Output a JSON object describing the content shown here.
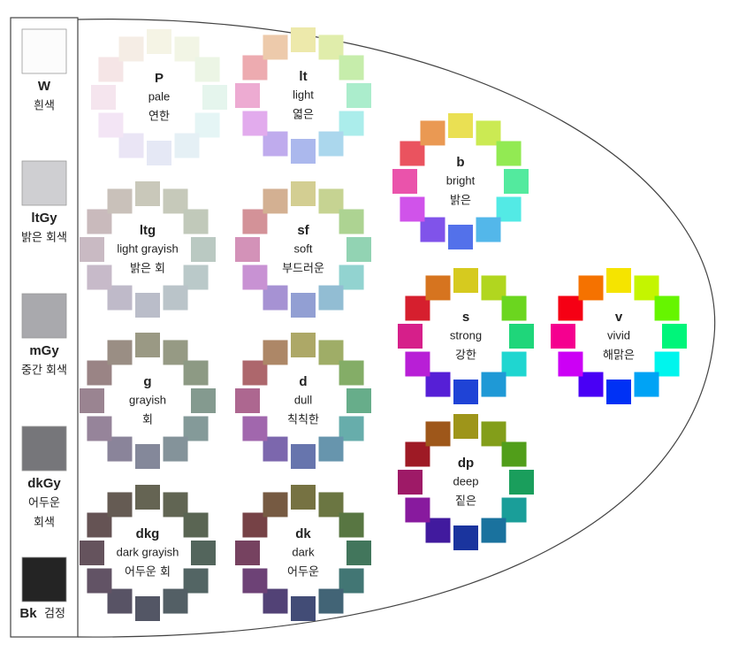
{
  "grays": [
    {
      "abbr": "W",
      "lines": [
        "흰색"
      ]
    },
    {
      "abbr": "ltGy",
      "lines": [
        "밝은 회색"
      ]
    },
    {
      "abbr": "mGy",
      "lines": [
        "중간 회색"
      ]
    },
    {
      "abbr": "dkGy",
      "lines": [
        "어두운",
        "회색"
      ]
    },
    {
      "abbr": "Bk",
      "lines": [
        "검정"
      ]
    }
  ],
  "tones": [
    {
      "abbr": "P",
      "en": "pale",
      "ko": "연한"
    },
    {
      "abbr": "lt",
      "en": "light",
      "ko": "엷은"
    },
    {
      "abbr": "b",
      "en": "bright",
      "ko": "밝은"
    },
    {
      "abbr": "ltg",
      "en": "light grayish",
      "ko": "밝은 회"
    },
    {
      "abbr": "sf",
      "en": "soft",
      "ko": "부드러운"
    },
    {
      "abbr": "s",
      "en": "strong",
      "ko": "강한"
    },
    {
      "abbr": "v",
      "en": "vivid",
      "ko": "해맑은"
    },
    {
      "abbr": "g",
      "en": "grayish",
      "ko": "회"
    },
    {
      "abbr": "d",
      "en": "dull",
      "ko": "칙칙한"
    },
    {
      "abbr": "dp",
      "en": "deep",
      "ko": "짙은"
    },
    {
      "abbr": "dkg",
      "en": "dark grayish",
      "ko": "어두운 회"
    },
    {
      "abbr": "dk",
      "en": "dark",
      "ko": "어두운"
    }
  ]
}
